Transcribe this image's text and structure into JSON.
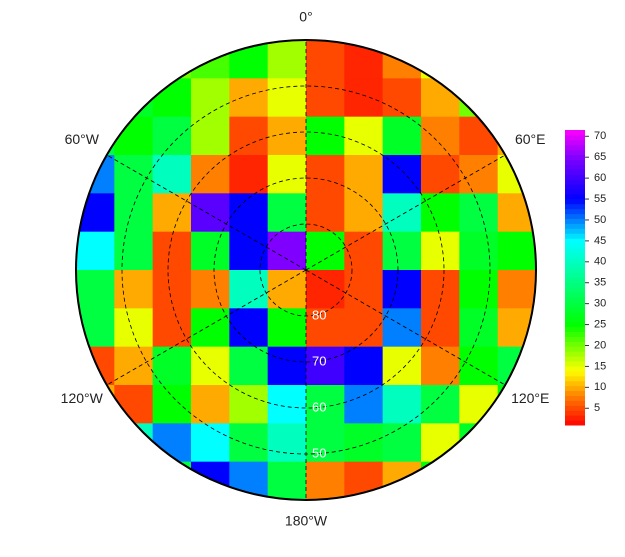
{
  "chart_data": {
    "type": "polar-heatmap",
    "rlim": [
      90,
      40
    ],
    "lat_ticks": [
      80,
      70,
      60,
      50
    ],
    "lon_ticks": [
      {
        "value": 0,
        "label": "0°"
      },
      {
        "value": 60,
        "label": "60°E"
      },
      {
        "value": 120,
        "label": "120°E"
      },
      {
        "value": 180,
        "label": "180°W"
      },
      {
        "value": -120,
        "label": "120°W"
      },
      {
        "value": -60,
        "label": "60°W"
      }
    ],
    "clim": [
      1,
      71.5
    ],
    "cticks": [
      5,
      10,
      15,
      20,
      25,
      30,
      35,
      40,
      45,
      50,
      55,
      60,
      65,
      70
    ],
    "colormap": [
      [
        1,
        "#ff0000"
      ],
      [
        8,
        "#ff8000"
      ],
      [
        14,
        "#ffff00"
      ],
      [
        25,
        "#00ff00"
      ],
      [
        45,
        "#00ffff"
      ],
      [
        55,
        "#0000ff"
      ],
      [
        65,
        "#8000ff"
      ],
      [
        71.5,
        "#ff00ff"
      ]
    ],
    "values": [
      [
        20,
        20,
        20,
        22,
        25,
        18,
        5,
        3,
        8,
        15,
        20,
        20
      ],
      [
        25,
        28,
        25,
        18,
        10,
        15,
        5,
        3,
        5,
        10,
        20,
        15
      ],
      [
        30,
        25,
        30,
        18,
        5,
        10,
        25,
        15,
        28,
        8,
        5,
        10
      ],
      [
        50,
        30,
        40,
        8,
        3,
        15,
        5,
        10,
        55,
        5,
        8,
        15
      ],
      [
        55,
        30,
        10,
        62,
        55,
        30,
        5,
        10,
        40,
        25,
        30,
        10
      ],
      [
        45,
        30,
        5,
        28,
        55,
        65,
        25,
        5,
        30,
        15,
        28,
        25
      ],
      [
        30,
        10,
        5,
        8,
        40,
        10,
        3,
        5,
        55,
        5,
        25,
        8
      ],
      [
        30,
        15,
        5,
        25,
        55,
        25,
        5,
        5,
        50,
        5,
        28,
        10
      ],
      [
        5,
        10,
        28,
        15,
        30,
        55,
        60,
        55,
        15,
        8,
        25,
        30
      ],
      [
        10,
        5,
        25,
        10,
        18,
        45,
        30,
        50,
        40,
        30,
        15,
        25
      ],
      [
        25,
        40,
        50,
        45,
        30,
        40,
        30,
        28,
        30,
        15,
        28,
        25
      ],
      [
        30,
        30,
        30,
        55,
        50,
        30,
        8,
        5,
        10,
        25,
        25,
        25
      ]
    ]
  }
}
